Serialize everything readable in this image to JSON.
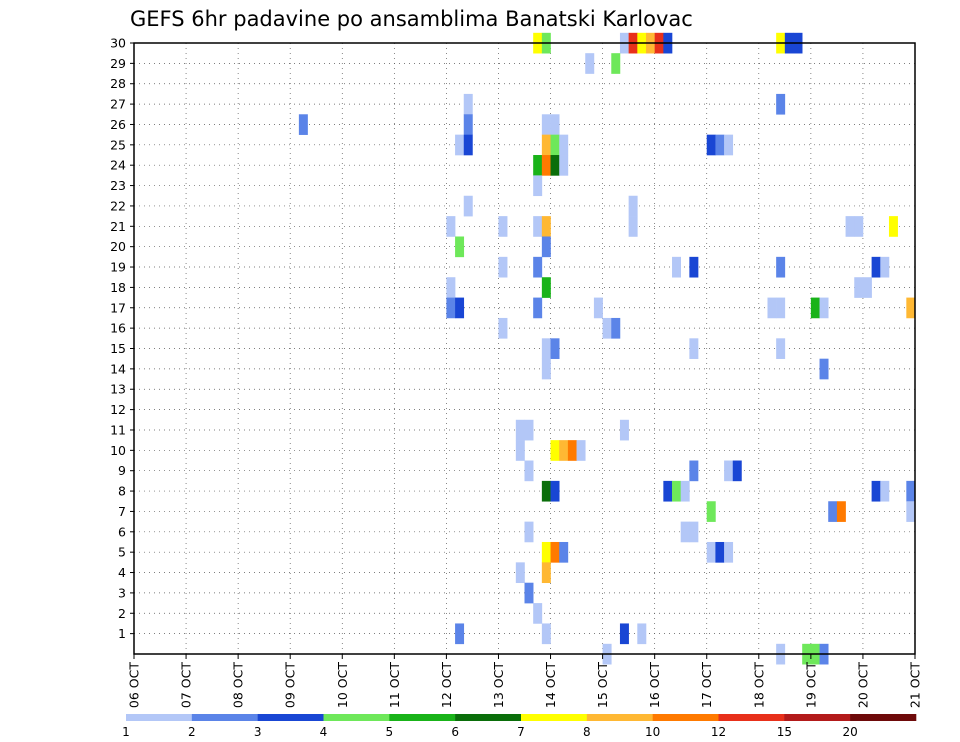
{
  "chart_data": {
    "type": "heatmap",
    "title": "GEFS 6hr padavine po ansamblima Banatski Karlovac",
    "xlabel": "",
    "ylabel": "",
    "x_unit": "6-hour step",
    "x_range": [
      0,
      60
    ],
    "x_ticks": [
      "06 OCT",
      "07 OCT",
      "08 OCT",
      "09 OCT",
      "10 OCT",
      "11 OCT",
      "12 OCT",
      "13 OCT",
      "14 OCT",
      "15 OCT",
      "16 OCT",
      "17 OCT",
      "18 OCT",
      "19 OCT",
      "20 OCT",
      "21 OCT"
    ],
    "y_ticks": [
      "1",
      "2",
      "3",
      "4",
      "5",
      "6",
      "7",
      "8",
      "9",
      "10",
      "11",
      "12",
      "13",
      "14",
      "15",
      "16",
      "17",
      "18",
      "19",
      "20",
      "21",
      "22",
      "23",
      "24",
      "25",
      "26",
      "27",
      "28",
      "29",
      "30"
    ],
    "y_range": [
      0,
      30
    ],
    "grid": true,
    "colorbar": {
      "labels": [
        "1",
        "2",
        "3",
        "4",
        "5",
        "6",
        "7",
        "8",
        "10",
        "12",
        "15",
        "20"
      ],
      "colors": [
        "#b3c7f7",
        "#5b84e8",
        "#1946d4",
        "#6ee85a",
        "#19b319",
        "#0a6e0a",
        "#ffff00",
        "#ffb833",
        "#ff7a00",
        "#e8301a",
        "#b31a1a",
        "#6e0a0a"
      ]
    },
    "cells": [
      [
        46.5,
        30,
        "#ffff00"
      ],
      [
        47.5,
        30,
        "#6ee85a"
      ],
      [
        56.5,
        30,
        "#b3c7f7"
      ],
      [
        57.5,
        30,
        "#e8301a"
      ],
      [
        58.5,
        30,
        "#ffff00"
      ],
      [
        59.5,
        30,
        "#ffb833"
      ],
      [
        60.5,
        30,
        "#e8301a"
      ],
      [
        61.5,
        30,
        "#1946d4"
      ],
      [
        74.5,
        30,
        "#ffff00"
      ],
      [
        75.5,
        30,
        "#1946d4"
      ],
      [
        76.5,
        30,
        "#1946d4"
      ],
      [
        52.5,
        29,
        "#b3c7f7"
      ],
      [
        55.5,
        29,
        "#6ee85a"
      ],
      [
        38.5,
        27,
        "#b3c7f7"
      ],
      [
        74.5,
        27,
        "#5b84e8"
      ],
      [
        19.5,
        26,
        "#5b84e8"
      ],
      [
        38.5,
        26,
        "#5b84e8"
      ],
      [
        47.5,
        26,
        "#b3c7f7"
      ],
      [
        48.5,
        26,
        "#b3c7f7"
      ],
      [
        37.5,
        25,
        "#b3c7f7"
      ],
      [
        38.5,
        25,
        "#1946d4"
      ],
      [
        47.5,
        25,
        "#ffb833"
      ],
      [
        48.5,
        25,
        "#6ee85a"
      ],
      [
        49.5,
        25,
        "#b3c7f7"
      ],
      [
        66.5,
        25,
        "#1946d4"
      ],
      [
        67.5,
        25,
        "#5b84e8"
      ],
      [
        68.5,
        25,
        "#b3c7f7"
      ],
      [
        46.5,
        24,
        "#19b319"
      ],
      [
        47.5,
        24,
        "#ff7a00"
      ],
      [
        48.5,
        24,
        "#0a6e0a"
      ],
      [
        49.5,
        24,
        "#b3c7f7"
      ],
      [
        46.5,
        23,
        "#b3c7f7"
      ],
      [
        38.5,
        22,
        "#b3c7f7"
      ],
      [
        57.5,
        22,
        "#b3c7f7"
      ],
      [
        36.5,
        21,
        "#b3c7f7"
      ],
      [
        42.5,
        21,
        "#b3c7f7"
      ],
      [
        46.5,
        21,
        "#b3c7f7"
      ],
      [
        47.5,
        21,
        "#ffb833"
      ],
      [
        57.5,
        21,
        "#b3c7f7"
      ],
      [
        82.5,
        21,
        "#b3c7f7"
      ],
      [
        83.5,
        21,
        "#b3c7f7"
      ],
      [
        87.5,
        21,
        "#ffff00"
      ],
      [
        37.5,
        20,
        "#6ee85a"
      ],
      [
        47.5,
        20,
        "#5b84e8"
      ],
      [
        42.5,
        19,
        "#b3c7f7"
      ],
      [
        46.5,
        19,
        "#5b84e8"
      ],
      [
        62.5,
        19,
        "#b3c7f7"
      ],
      [
        64.5,
        19,
        "#1946d4"
      ],
      [
        74.5,
        19,
        "#5b84e8"
      ],
      [
        85.5,
        19,
        "#1946d4"
      ],
      [
        86.5,
        19,
        "#b3c7f7"
      ],
      [
        36.5,
        18,
        "#b3c7f7"
      ],
      [
        47.5,
        18,
        "#19b319"
      ],
      [
        83.5,
        18,
        "#b3c7f7"
      ],
      [
        84.5,
        18,
        "#b3c7f7"
      ],
      [
        36.5,
        17,
        "#5b84e8"
      ],
      [
        37.5,
        17,
        "#1946d4"
      ],
      [
        46.5,
        17,
        "#5b84e8"
      ],
      [
        53.5,
        17,
        "#b3c7f7"
      ],
      [
        73.5,
        17,
        "#b3c7f7"
      ],
      [
        74.5,
        17,
        "#b3c7f7"
      ],
      [
        78.5,
        17,
        "#19b319"
      ],
      [
        79.5,
        17,
        "#b3c7f7"
      ],
      [
        89.5,
        17,
        "#ffb833"
      ],
      [
        42.5,
        16,
        "#b3c7f7"
      ],
      [
        54.5,
        16,
        "#b3c7f7"
      ],
      [
        55.5,
        16,
        "#5b84e8"
      ],
      [
        47.5,
        15,
        "#b3c7f7"
      ],
      [
        48.5,
        15,
        "#5b84e8"
      ],
      [
        64.5,
        15,
        "#b3c7f7"
      ],
      [
        74.5,
        15,
        "#b3c7f7"
      ],
      [
        47.5,
        14,
        "#b3c7f7"
      ],
      [
        79.5,
        14,
        "#5b84e8"
      ],
      [
        44.5,
        11,
        "#b3c7f7"
      ],
      [
        45.5,
        11,
        "#b3c7f7"
      ],
      [
        56.5,
        11,
        "#b3c7f7"
      ],
      [
        44.5,
        10,
        "#b3c7f7"
      ],
      [
        48.5,
        10,
        "#ffff00"
      ],
      [
        49.5,
        10,
        "#ffb833"
      ],
      [
        50.5,
        10,
        "#ff7a00"
      ],
      [
        51.5,
        10,
        "#b3c7f7"
      ],
      [
        45.5,
        9,
        "#b3c7f7"
      ],
      [
        64.5,
        9,
        "#5b84e8"
      ],
      [
        68.5,
        9,
        "#b3c7f7"
      ],
      [
        69.5,
        9,
        "#1946d4"
      ],
      [
        47.5,
        8,
        "#0a6e0a"
      ],
      [
        48.5,
        8,
        "#1946d4"
      ],
      [
        61.5,
        8,
        "#1946d4"
      ],
      [
        62.5,
        8,
        "#6ee85a"
      ],
      [
        63.5,
        8,
        "#b3c7f7"
      ],
      [
        85.5,
        8,
        "#1946d4"
      ],
      [
        86.5,
        8,
        "#b3c7f7"
      ],
      [
        89.5,
        8,
        "#5b84e8"
      ],
      [
        66.5,
        7,
        "#6ee85a"
      ],
      [
        80.5,
        7,
        "#5b84e8"
      ],
      [
        81.5,
        7,
        "#ff7a00"
      ],
      [
        89.5,
        7,
        "#b3c7f7"
      ],
      [
        45.5,
        6,
        "#b3c7f7"
      ],
      [
        63.5,
        6,
        "#b3c7f7"
      ],
      [
        64.5,
        6,
        "#b3c7f7"
      ],
      [
        47.5,
        5,
        "#ffff00"
      ],
      [
        48.5,
        5,
        "#ff7a00"
      ],
      [
        49.5,
        5,
        "#5b84e8"
      ],
      [
        66.5,
        5,
        "#b3c7f7"
      ],
      [
        67.5,
        5,
        "#1946d4"
      ],
      [
        68.5,
        5,
        "#b3c7f7"
      ],
      [
        44.5,
        4,
        "#b3c7f7"
      ],
      [
        47.5,
        4,
        "#ffb833"
      ],
      [
        45.5,
        3,
        "#5b84e8"
      ],
      [
        46.5,
        2,
        "#b3c7f7"
      ],
      [
        37.5,
        1,
        "#5b84e8"
      ],
      [
        47.5,
        1,
        "#b3c7f7"
      ],
      [
        56.5,
        1,
        "#1946d4"
      ],
      [
        58.5,
        1,
        "#b3c7f7"
      ],
      [
        54.5,
        0,
        "#b3c7f7"
      ],
      [
        74.5,
        0,
        "#b3c7f7"
      ],
      [
        77.5,
        0,
        "#6ee85a"
      ],
      [
        78.5,
        0,
        "#6ee85a"
      ],
      [
        79.5,
        0,
        "#5b84e8"
      ]
    ]
  }
}
